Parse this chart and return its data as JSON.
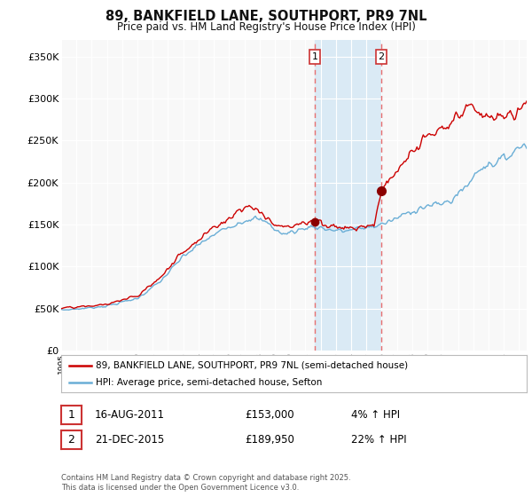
{
  "title_line1": "89, BANKFIELD LANE, SOUTHPORT, PR9 7NL",
  "title_line2": "Price paid vs. HM Land Registry's House Price Index (HPI)",
  "ylabel_ticks": [
    "£0",
    "£50K",
    "£100K",
    "£150K",
    "£200K",
    "£250K",
    "£300K",
    "£350K"
  ],
  "ytick_values": [
    0,
    50000,
    100000,
    150000,
    200000,
    250000,
    300000,
    350000
  ],
  "ylim": [
    0,
    370000
  ],
  "xlim_start": 1995.0,
  "xlim_end": 2025.5,
  "xtick_years": [
    1995,
    1996,
    1997,
    1998,
    1999,
    2000,
    2001,
    2002,
    2003,
    2004,
    2005,
    2006,
    2007,
    2008,
    2009,
    2010,
    2011,
    2012,
    2013,
    2014,
    2015,
    2016,
    2017,
    2018,
    2019,
    2020,
    2021,
    2022,
    2023,
    2024,
    2025
  ],
  "red_line_color": "#cc0000",
  "blue_line_color": "#6aaed6",
  "shaded_region_color": "#daeaf5",
  "dashed_line_color": "#e87070",
  "marker1_x": 2011.62,
  "marker1_y": 153000,
  "marker2_x": 2015.97,
  "marker2_y": 189950,
  "legend_line1": "89, BANKFIELD LANE, SOUTHPORT, PR9 7NL (semi-detached house)",
  "legend_line2": "HPI: Average price, semi-detached house, Sefton",
  "annotation1_box": "1",
  "annotation1_date": "16-AUG-2011",
  "annotation1_price": "£153,000",
  "annotation1_hpi": "4% ↑ HPI",
  "annotation2_box": "2",
  "annotation2_date": "21-DEC-2015",
  "annotation2_price": "£189,950",
  "annotation2_hpi": "22% ↑ HPI",
  "footer": "Contains HM Land Registry data © Crown copyright and database right 2025.\nThis data is licensed under the Open Government Licence v3.0.",
  "background_color": "#ffffff",
  "plot_bg_color": "#f8f8f8"
}
